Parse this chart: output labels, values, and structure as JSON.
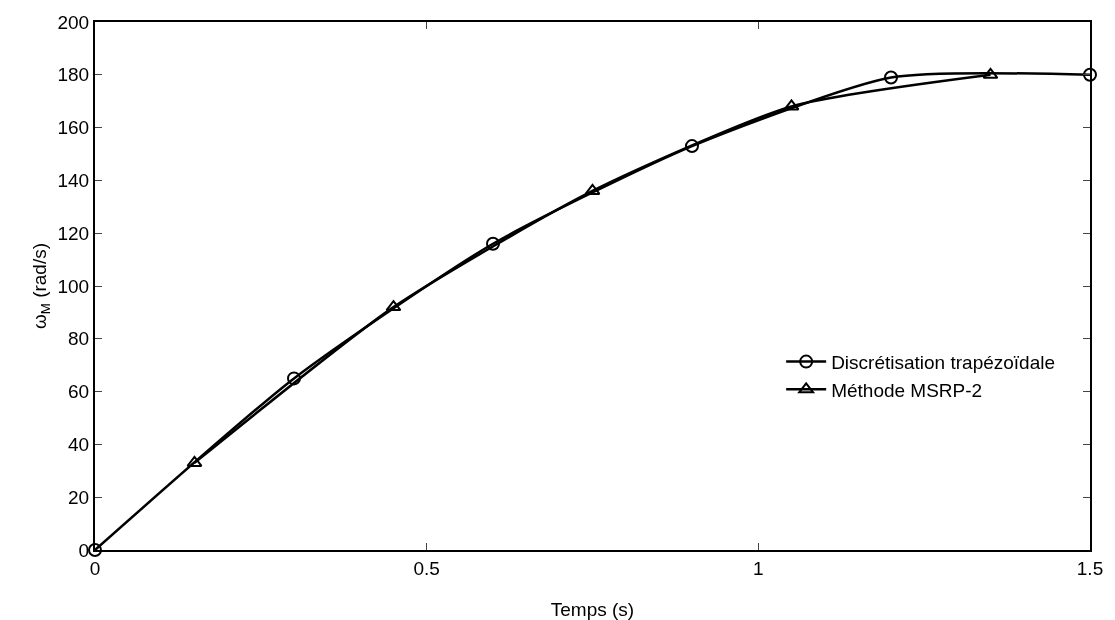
{
  "chart_data": {
    "type": "line",
    "xlabel": "Temps (s)",
    "ylabel": "ω$_{M}$ (rad/s)",
    "xlim": [
      0,
      1.5
    ],
    "xticks": [
      0,
      0.5,
      1,
      1.5
    ],
    "ylim": [
      0,
      200
    ],
    "yticks": [
      0,
      20,
      40,
      60,
      80,
      100,
      120,
      140,
      160,
      180,
      200
    ],
    "grid": false,
    "legend": "right",
    "line_style": "solid",
    "series": [
      {
        "name": "Discrétisation trapézoïdale",
        "color": "#000000",
        "marker": "circle",
        "x": [
          0,
          0.3,
          0.6,
          0.9,
          1.2,
          1.5
        ],
        "values": [
          0,
          65,
          116,
          153,
          179,
          180
        ]
      },
      {
        "name": "Méthode MSRP-2",
        "color": "#000000",
        "marker": "triangle",
        "x": [
          0.15,
          0.45,
          0.75,
          1.05,
          1.35
        ],
        "values": [
          33,
          92,
          136,
          168,
          180
        ]
      }
    ]
  }
}
